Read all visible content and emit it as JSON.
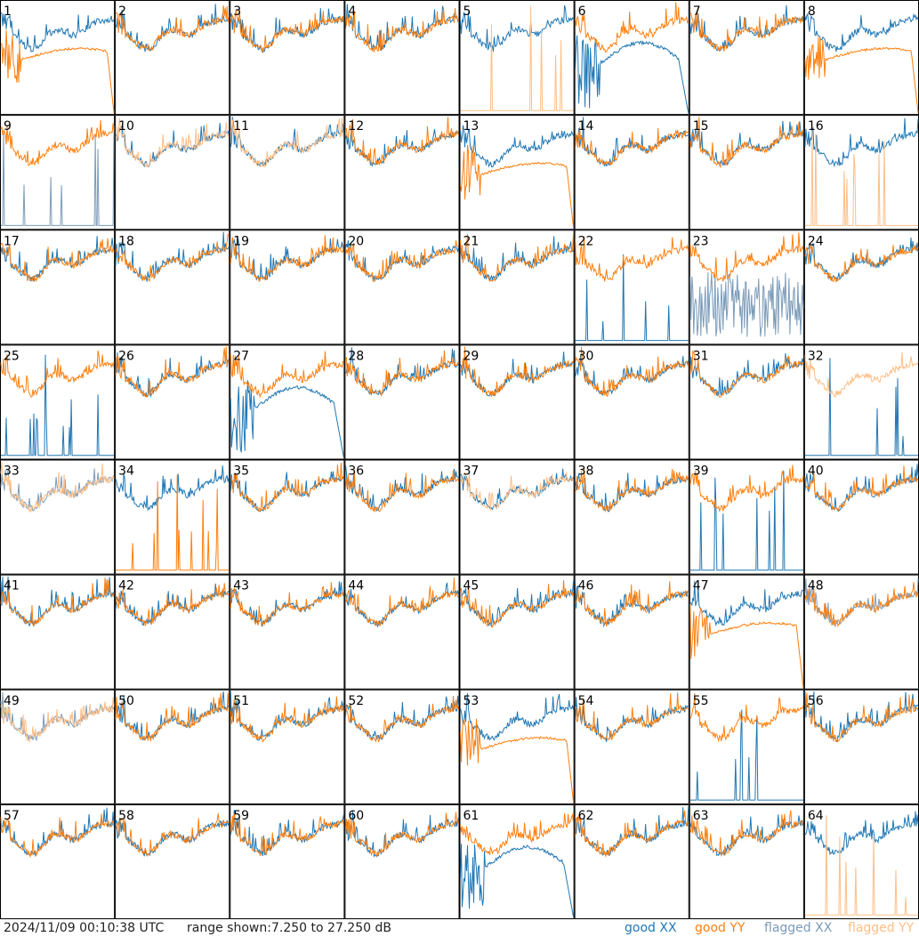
{
  "footer": {
    "timestamp": "2024/11/09 00:10:38 UTC",
    "range_label": "range shown:",
    "range_value": "7.250 to 27.250 dB",
    "legend": {
      "good_xx": "good XX",
      "good_yy": "good YY",
      "flagged_xx": "flagged XX",
      "flagged_yy": "flagged YY"
    }
  },
  "colors": {
    "good_xx": "#1f77b4",
    "good_yy": "#ff7f0e",
    "flagged_xx": "#7b9bb8",
    "flagged_yy": "#ffbe86"
  },
  "chart_data": {
    "type": "line",
    "layout": "8x8 small multiples",
    "ylim_db": [
      7.25,
      27.25
    ],
    "tiles": [
      {
        "id": "1",
        "xx": "good",
        "yy": "good",
        "xx_shape": "normal",
        "yy_shape": "plateau"
      },
      {
        "id": "2",
        "xx": "good",
        "yy": "good",
        "xx_shape": "normal",
        "yy_shape": "normal"
      },
      {
        "id": "3",
        "xx": "good",
        "yy": "good",
        "xx_shape": "normal",
        "yy_shape": "normal"
      },
      {
        "id": "4",
        "xx": "good",
        "yy": "good",
        "xx_shape": "normal",
        "yy_shape": "normal"
      },
      {
        "id": "5",
        "xx": "good",
        "yy": "flagged",
        "xx_shape": "normal",
        "yy_shape": "spikes"
      },
      {
        "id": "6",
        "xx": "good",
        "yy": "good",
        "xx_shape": "dip",
        "yy_shape": "normal"
      },
      {
        "id": "7",
        "xx": "good",
        "yy": "good",
        "xx_shape": "normal",
        "yy_shape": "normal"
      },
      {
        "id": "8",
        "xx": "good",
        "yy": "good",
        "xx_shape": "normal",
        "yy_shape": "plateau"
      },
      {
        "id": "9",
        "xx": "flagged",
        "yy": "good",
        "xx_shape": "spikes",
        "yy_shape": "normal"
      },
      {
        "id": "10",
        "xx": "good",
        "yy": "flagged",
        "xx_shape": "normal",
        "yy_shape": "normal"
      },
      {
        "id": "11",
        "xx": "good",
        "yy": "flagged",
        "xx_shape": "normal",
        "yy_shape": "normal"
      },
      {
        "id": "12",
        "xx": "good",
        "yy": "good",
        "xx_shape": "normal",
        "yy_shape": "normal"
      },
      {
        "id": "13",
        "xx": "good",
        "yy": "good",
        "xx_shape": "normal",
        "yy_shape": "plateau"
      },
      {
        "id": "14",
        "xx": "good",
        "yy": "good",
        "xx_shape": "normal",
        "yy_shape": "normal"
      },
      {
        "id": "15",
        "xx": "good",
        "yy": "good",
        "xx_shape": "normal",
        "yy_shape": "normal"
      },
      {
        "id": "16",
        "xx": "good",
        "yy": "flagged",
        "xx_shape": "normal",
        "yy_shape": "spikes"
      },
      {
        "id": "17",
        "xx": "good",
        "yy": "good",
        "xx_shape": "normal",
        "yy_shape": "normal"
      },
      {
        "id": "18",
        "xx": "good",
        "yy": "good",
        "xx_shape": "normal",
        "yy_shape": "normal"
      },
      {
        "id": "19",
        "xx": "good",
        "yy": "good",
        "xx_shape": "normal",
        "yy_shape": "normal"
      },
      {
        "id": "20",
        "xx": "good",
        "yy": "good",
        "xx_shape": "normal",
        "yy_shape": "normal"
      },
      {
        "id": "21",
        "xx": "good",
        "yy": "good",
        "xx_shape": "normal",
        "yy_shape": "normal"
      },
      {
        "id": "22",
        "xx": "good",
        "yy": "good",
        "xx_shape": "spikes",
        "yy_shape": "normal"
      },
      {
        "id": "23",
        "xx": "flagged",
        "yy": "good",
        "xx_shape": "noisy",
        "yy_shape": "normal"
      },
      {
        "id": "24",
        "xx": "good",
        "yy": "good",
        "xx_shape": "normal",
        "yy_shape": "normal"
      },
      {
        "id": "25",
        "xx": "good",
        "yy": "good",
        "xx_shape": "spikes",
        "yy_shape": "normal"
      },
      {
        "id": "26",
        "xx": "good",
        "yy": "good",
        "xx_shape": "normal",
        "yy_shape": "normal"
      },
      {
        "id": "27",
        "xx": "good",
        "yy": "good",
        "xx_shape": "dip",
        "yy_shape": "normal"
      },
      {
        "id": "28",
        "xx": "good",
        "yy": "good",
        "xx_shape": "normal",
        "yy_shape": "normal"
      },
      {
        "id": "29",
        "xx": "good",
        "yy": "good",
        "xx_shape": "normal",
        "yy_shape": "normal"
      },
      {
        "id": "30",
        "xx": "good",
        "yy": "good",
        "xx_shape": "normal",
        "yy_shape": "normal"
      },
      {
        "id": "31",
        "xx": "good",
        "yy": "good",
        "xx_shape": "normal",
        "yy_shape": "normal"
      },
      {
        "id": "32",
        "xx": "good",
        "yy": "flagged",
        "xx_shape": "spikes",
        "yy_shape": "normal"
      },
      {
        "id": "33",
        "xx": "flagged",
        "yy": "flagged",
        "xx_shape": "normal",
        "yy_shape": "normal"
      },
      {
        "id": "34",
        "xx": "good",
        "yy": "good",
        "xx_shape": "normal",
        "yy_shape": "spikes"
      },
      {
        "id": "35",
        "xx": "good",
        "yy": "good",
        "xx_shape": "normal",
        "yy_shape": "normal"
      },
      {
        "id": "36",
        "xx": "good",
        "yy": "good",
        "xx_shape": "normal",
        "yy_shape": "normal"
      },
      {
        "id": "37",
        "xx": "good",
        "yy": "flagged",
        "xx_shape": "normal",
        "yy_shape": "normal"
      },
      {
        "id": "38",
        "xx": "good",
        "yy": "good",
        "xx_shape": "normal",
        "yy_shape": "normal"
      },
      {
        "id": "39",
        "xx": "good",
        "yy": "good",
        "xx_shape": "spikes",
        "yy_shape": "normal"
      },
      {
        "id": "40",
        "xx": "good",
        "yy": "good",
        "xx_shape": "normal",
        "yy_shape": "normal"
      },
      {
        "id": "41",
        "xx": "good",
        "yy": "good",
        "xx_shape": "normal",
        "yy_shape": "normal"
      },
      {
        "id": "42",
        "xx": "good",
        "yy": "good",
        "xx_shape": "normal",
        "yy_shape": "normal"
      },
      {
        "id": "43",
        "xx": "good",
        "yy": "good",
        "xx_shape": "normal",
        "yy_shape": "normal"
      },
      {
        "id": "44",
        "xx": "good",
        "yy": "good",
        "xx_shape": "normal",
        "yy_shape": "normal"
      },
      {
        "id": "45",
        "xx": "good",
        "yy": "good",
        "xx_shape": "normal",
        "yy_shape": "normal"
      },
      {
        "id": "46",
        "xx": "good",
        "yy": "good",
        "xx_shape": "normal",
        "yy_shape": "normal"
      },
      {
        "id": "47",
        "xx": "good",
        "yy": "good",
        "xx_shape": "normal",
        "yy_shape": "plateau"
      },
      {
        "id": "48",
        "xx": "flagged",
        "yy": "good",
        "xx_shape": "normal",
        "yy_shape": "normal"
      },
      {
        "id": "49",
        "xx": "flagged",
        "yy": "flagged",
        "xx_shape": "normal",
        "yy_shape": "normal"
      },
      {
        "id": "50",
        "xx": "good",
        "yy": "good",
        "xx_shape": "normal",
        "yy_shape": "normal"
      },
      {
        "id": "51",
        "xx": "good",
        "yy": "good",
        "xx_shape": "normal",
        "yy_shape": "normal"
      },
      {
        "id": "52",
        "xx": "good",
        "yy": "good",
        "xx_shape": "normal",
        "yy_shape": "normal"
      },
      {
        "id": "53",
        "xx": "good",
        "yy": "good",
        "xx_shape": "normal",
        "yy_shape": "plateau"
      },
      {
        "id": "54",
        "xx": "good",
        "yy": "good",
        "xx_shape": "normal",
        "yy_shape": "normal"
      },
      {
        "id": "55",
        "xx": "good",
        "yy": "good",
        "xx_shape": "spikes",
        "yy_shape": "normal"
      },
      {
        "id": "56",
        "xx": "good",
        "yy": "good",
        "xx_shape": "normal",
        "yy_shape": "normal"
      },
      {
        "id": "57",
        "xx": "good",
        "yy": "good",
        "xx_shape": "normal",
        "yy_shape": "normal"
      },
      {
        "id": "58",
        "xx": "good",
        "yy": "good",
        "xx_shape": "normal",
        "yy_shape": "normal"
      },
      {
        "id": "59",
        "xx": "good",
        "yy": "good",
        "xx_shape": "normal",
        "yy_shape": "normal"
      },
      {
        "id": "60",
        "xx": "good",
        "yy": "good",
        "xx_shape": "normal",
        "yy_shape": "normal"
      },
      {
        "id": "61",
        "xx": "good",
        "yy": "good",
        "xx_shape": "dip",
        "yy_shape": "normal"
      },
      {
        "id": "62",
        "xx": "good",
        "yy": "good",
        "xx_shape": "normal",
        "yy_shape": "normal"
      },
      {
        "id": "63",
        "xx": "good",
        "yy": "good",
        "xx_shape": "normal",
        "yy_shape": "normal"
      },
      {
        "id": "64",
        "xx": "good",
        "yy": "flagged",
        "xx_shape": "normal",
        "yy_shape": "spikes"
      }
    ]
  }
}
